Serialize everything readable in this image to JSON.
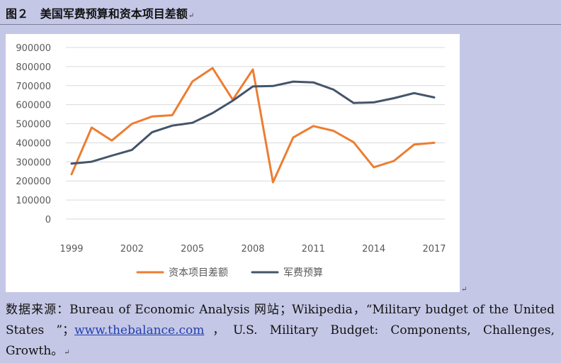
{
  "figure": {
    "caption_prefix": "图２",
    "caption_title": "美国军费预算和资本项目差额"
  },
  "chart_data": {
    "type": "line",
    "title": "",
    "xlabel": "",
    "ylabel": "",
    "ylim": [
      0,
      900000
    ],
    "yticks": [
      "900000",
      "800000",
      "700000",
      "600000",
      "500000",
      "400000",
      "300000",
      "200000",
      "100000",
      "0"
    ],
    "xticks": [
      "1999",
      "2002",
      "2005",
      "2008",
      "2011",
      "2014",
      "2017"
    ],
    "x": [
      1999,
      2000,
      2001,
      2002,
      2003,
      2004,
      2005,
      2006,
      2007,
      2008,
      2009,
      2010,
      2011,
      2012,
      2013,
      2014,
      2015,
      2016,
      2017
    ],
    "grid": true,
    "legend_placement": "bottom",
    "series": [
      {
        "name": "资本项目差额",
        "color": "#ed7d31",
        "values": [
          235000,
          480000,
          412000,
          500000,
          538000,
          545000,
          722000,
          792000,
          626000,
          785000,
          193000,
          428000,
          488000,
          463000,
          403000,
          272000,
          305000,
          391000,
          400000
        ]
      },
      {
        "name": "军费预算",
        "color": "#44546a",
        "values": [
          291000,
          301000,
          333000,
          363000,
          456000,
          490000,
          505000,
          556000,
          621000,
          696000,
          698000,
          721000,
          717000,
          679000,
          609000,
          612000,
          634000,
          661000,
          638000
        ]
      }
    ]
  },
  "source": {
    "part1": "数据来源：Bureau of Economic Analysis 网站；Wikipedia，“Military budget of the United States ”；",
    "link": "www.thebalance.com",
    "part2": "，U.S. Military Budget: Components, Challenges, Growth。"
  },
  "marks": {
    "paragraph": "↵"
  }
}
